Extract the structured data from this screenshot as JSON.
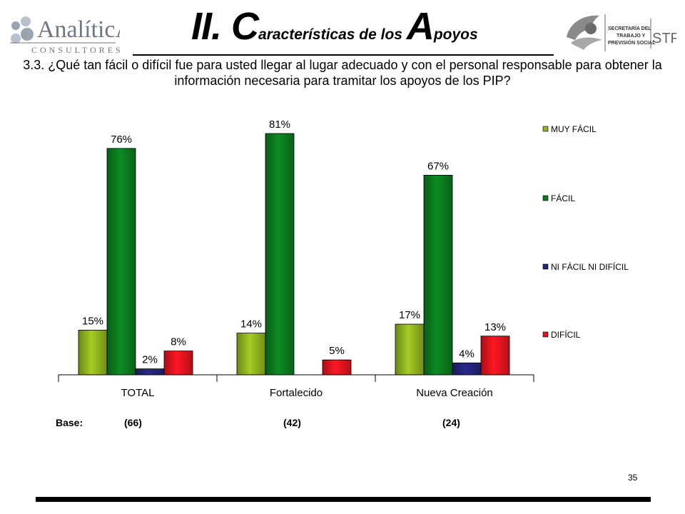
{
  "header": {
    "title_parts": [
      "II. ",
      "C",
      "aracterísticas de los ",
      "A",
      "poyos"
    ],
    "question": "3.3. ¿Qué tan fácil o difícil fue para usted llegar al lugar adecuado y con el personal responsable para obtener la información necesaria para tramitar los apoyos de los PIP?"
  },
  "logos": {
    "left": {
      "name": "AnalíticA",
      "sub": "CONSULTORES"
    },
    "right": {
      "line1": "SECRETARÍA DEL",
      "line2": "TRABAJO Y",
      "line3": "PREVISIÓN SOCIAL",
      "acronym": "STPS"
    }
  },
  "chart_data": {
    "type": "bar",
    "categories": [
      "TOTAL",
      "Fortalecido",
      "Nueva Creación"
    ],
    "series": [
      {
        "name": "MUY FÁCIL",
        "color": "#8fb21f",
        "values": [
          15,
          14,
          17
        ]
      },
      {
        "name": "FÁCIL",
        "color": "#0b7a1e",
        "values": [
          76,
          81,
          67
        ]
      },
      {
        "name": "NI FÁCIL NI DIFÍCIL",
        "color": "#24247a",
        "values": [
          2,
          null,
          4
        ]
      },
      {
        "name": "DIFÍCIL",
        "color": "#e0141e",
        "values": [
          8,
          5,
          13
        ]
      }
    ],
    "value_suffix": "%",
    "ylim": [
      0,
      81
    ],
    "grid": false,
    "legend_position": "right"
  },
  "bases": {
    "label": "Base:",
    "values": [
      "(66)",
      "(42)",
      "(24)"
    ]
  },
  "footer": {
    "page_number": "35"
  }
}
